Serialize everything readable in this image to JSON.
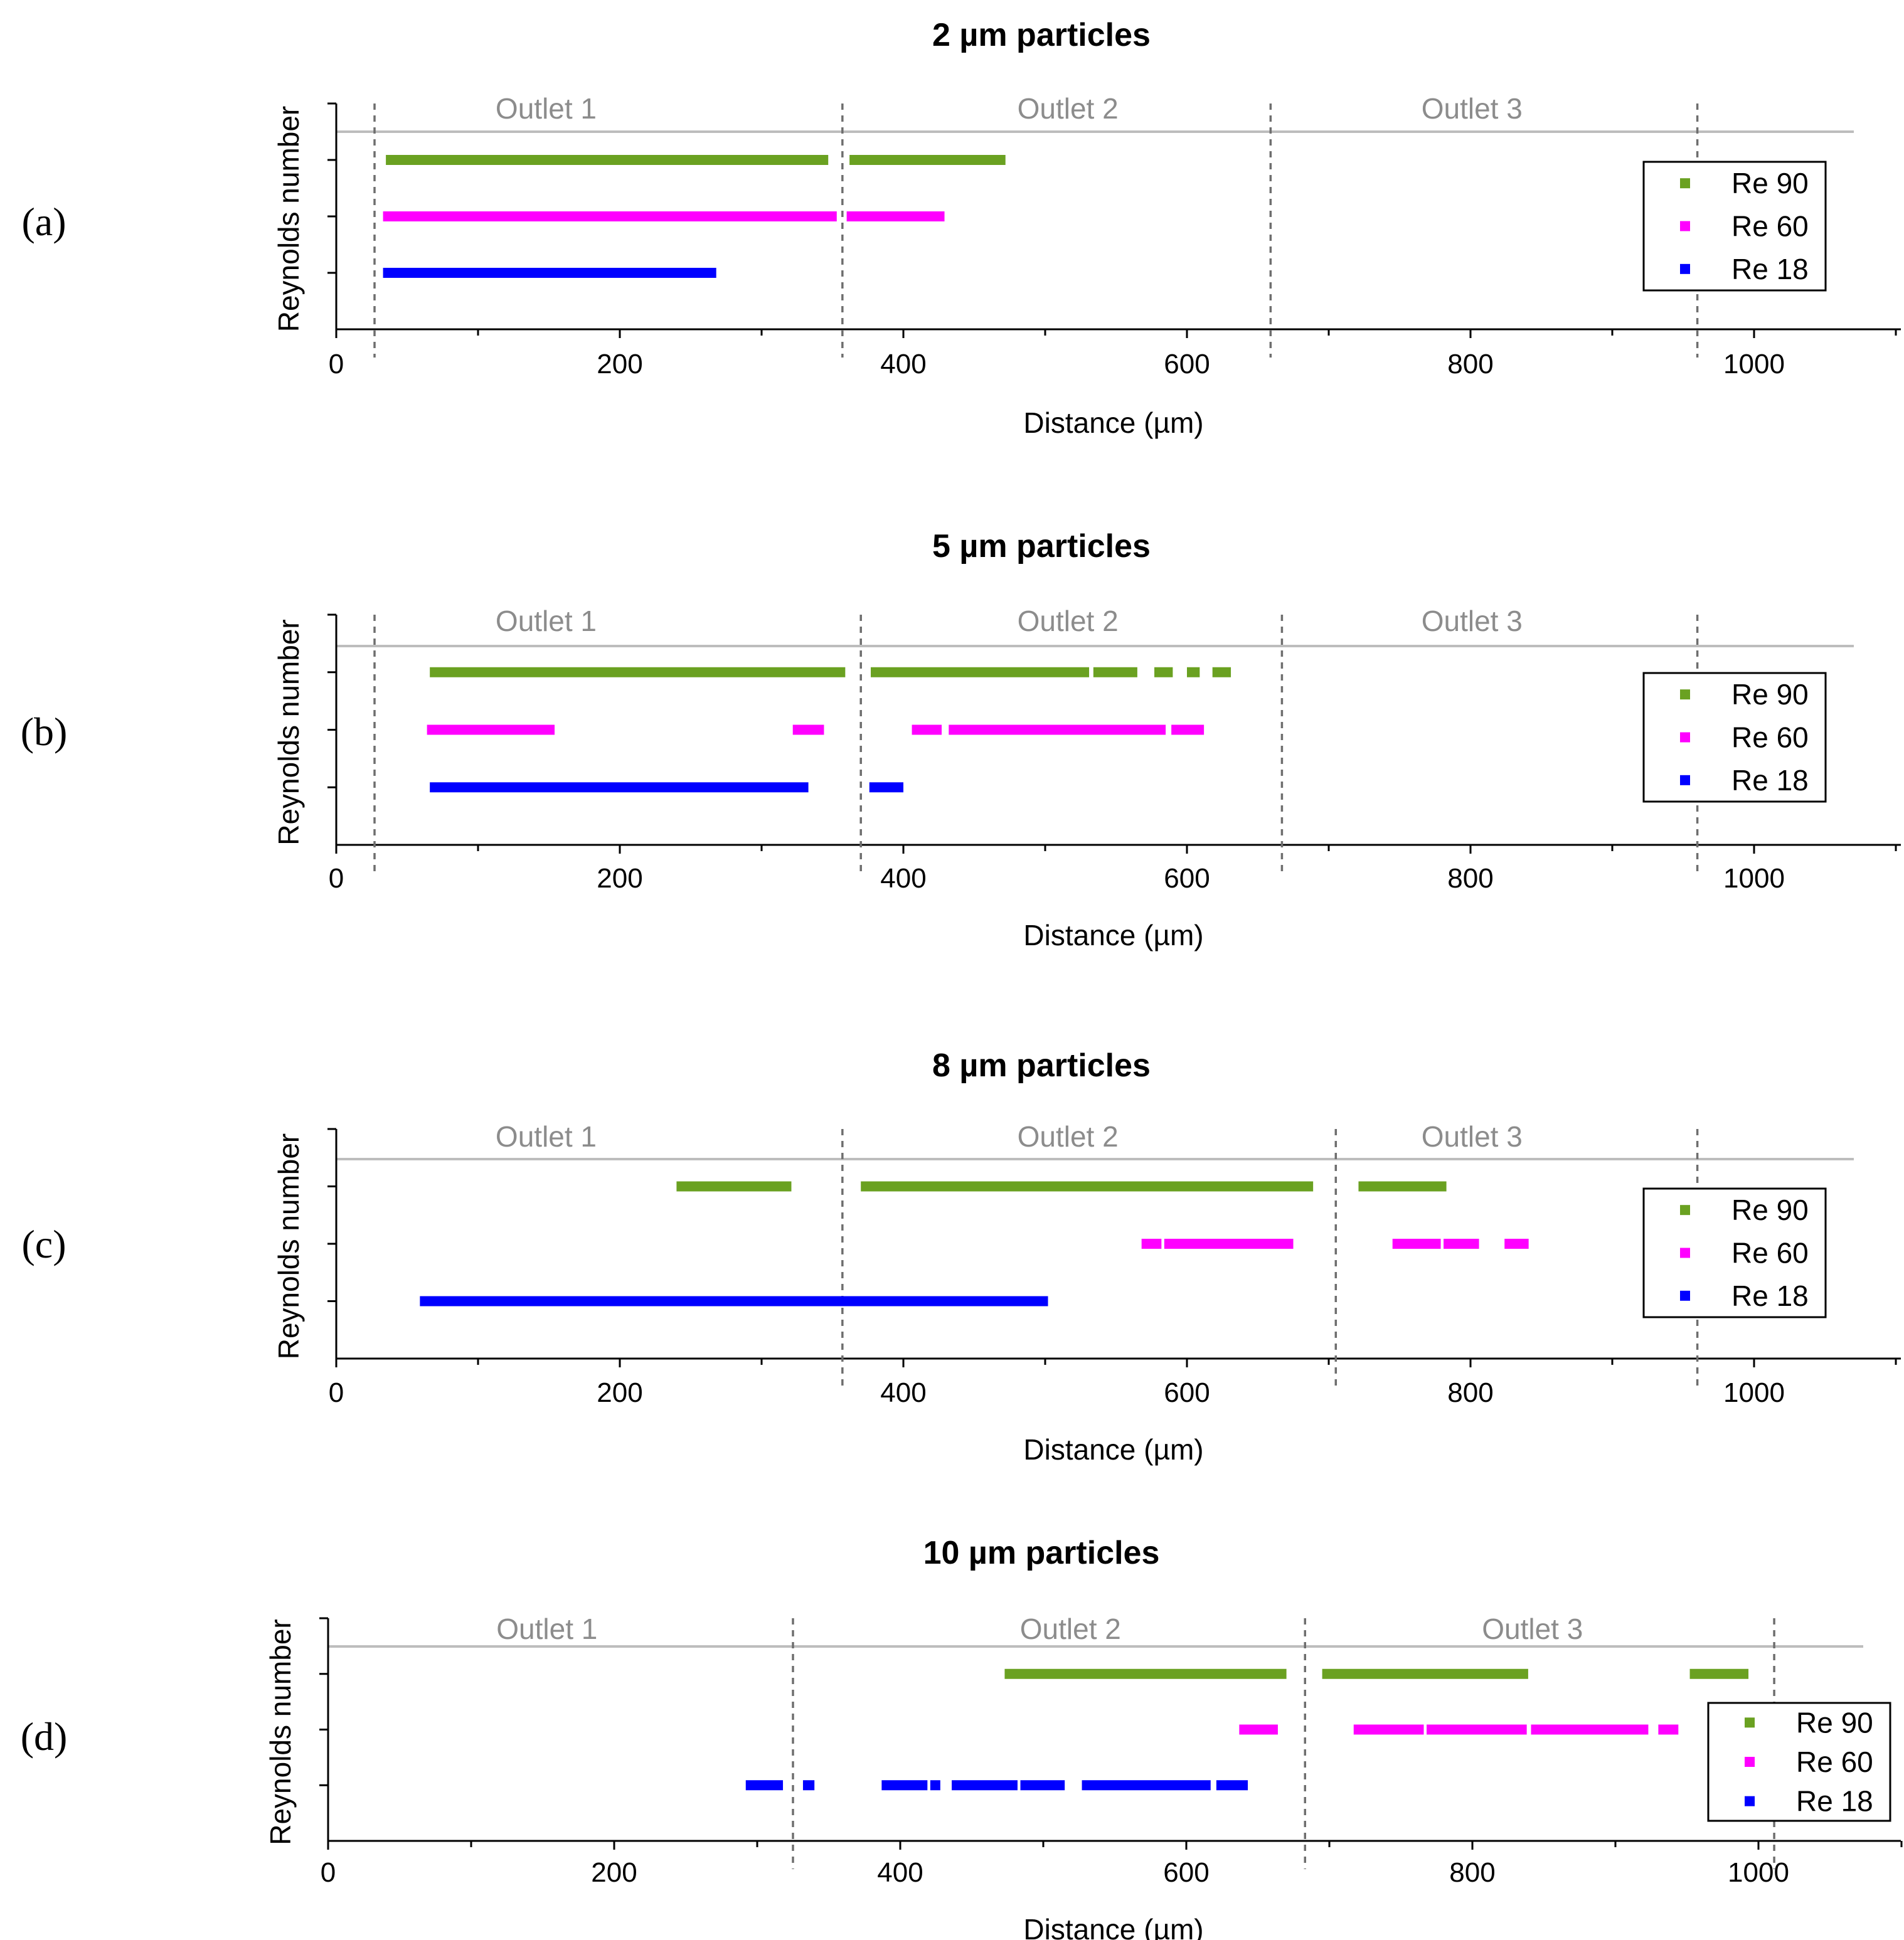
{
  "colors": {
    "Re 90": "#6aa121",
    "Re 60": "#ff00ff",
    "Re 18": "#0000ff",
    "axis": "#000000",
    "divider": "#6e6e6e",
    "top_line": "#bdbdbd",
    "outlet_text": "#8c8c8c"
  },
  "chart_data": [
    {
      "type": "bar",
      "panel_label": "(a)",
      "title": "2 µm particles",
      "xlabel": "Distance (µm)",
      "ylabel": "Reynolds number",
      "xlim": [
        0,
        1100
      ],
      "x_ticks": [
        0,
        200,
        400,
        600,
        800,
        1000
      ],
      "x_tick_labels": [
        "0",
        "200",
        "400",
        "600",
        "800",
        "1000"
      ],
      "grid": false,
      "legend": {
        "position": "right",
        "entries": [
          "Re 90",
          "Re 60",
          "Re 18"
        ]
      },
      "outlet_labels": [
        {
          "text": "Outlet 1",
          "x": 148
        },
        {
          "text": "Outlet 2",
          "x": 516
        },
        {
          "text": "Outlet 3",
          "x": 801
        }
      ],
      "outlet_boundaries": [
        27,
        357,
        659,
        960
      ],
      "series": [
        {
          "name": "Re 90",
          "segments": [
            [
              35,
              347
            ],
            [
              362,
              472
            ]
          ]
        },
        {
          "name": "Re 60",
          "segments": [
            [
              33,
              353
            ],
            [
              360,
              429
            ]
          ]
        },
        {
          "name": "Re 18",
          "segments": [
            [
              33,
              268
            ]
          ]
        }
      ]
    },
    {
      "type": "bar",
      "panel_label": "(b)",
      "title": "5 µm particles",
      "xlabel": "Distance (µm)",
      "ylabel": "Reynolds number",
      "xlim": [
        0,
        1100
      ],
      "x_ticks": [
        0,
        200,
        400,
        600,
        800,
        1000
      ],
      "x_tick_labels": [
        "0",
        "200",
        "400",
        "600",
        "800",
        "1000"
      ],
      "grid": false,
      "legend": {
        "position": "right",
        "entries": [
          "Re 90",
          "Re 60",
          "Re 18"
        ]
      },
      "outlet_labels": [
        {
          "text": "Outlet 1",
          "x": 148
        },
        {
          "text": "Outlet 2",
          "x": 516
        },
        {
          "text": "Outlet 3",
          "x": 801
        }
      ],
      "outlet_boundaries": [
        27,
        370,
        667,
        960
      ],
      "series": [
        {
          "name": "Re 90",
          "segments": [
            [
              66,
              359
            ],
            [
              377,
              531
            ],
            [
              534,
              565
            ],
            [
              577,
              590
            ],
            [
              600,
              609
            ],
            [
              618,
              631
            ]
          ]
        },
        {
          "name": "Re 60",
          "segments": [
            [
              64,
              154
            ],
            [
              322,
              344
            ],
            [
              406,
              427
            ],
            [
              432,
              585
            ],
            [
              589,
              612
            ]
          ]
        },
        {
          "name": "Re 18",
          "segments": [
            [
              66,
              333
            ],
            [
              376,
              400
            ]
          ]
        }
      ]
    },
    {
      "type": "bar",
      "panel_label": "(c)",
      "title": "8 µm particles",
      "xlabel": "Distance (µm)",
      "ylabel": "Reynolds number",
      "xlim": [
        0,
        1100
      ],
      "x_ticks": [
        0,
        200,
        400,
        600,
        800,
        1000
      ],
      "x_tick_labels": [
        "0",
        "200",
        "400",
        "600",
        "800",
        "1000"
      ],
      "grid": false,
      "legend": {
        "position": "right",
        "entries": [
          "Re 90",
          "Re 60",
          "Re 18"
        ]
      },
      "outlet_labels": [
        {
          "text": "Outlet 1",
          "x": 148
        },
        {
          "text": "Outlet 2",
          "x": 516
        },
        {
          "text": "Outlet 3",
          "x": 801
        }
      ],
      "outlet_boundaries": [
        357,
        705,
        960
      ],
      "series": [
        {
          "name": "Re 90",
          "segments": [
            [
              240,
              321
            ],
            [
              370,
              689
            ],
            [
              721,
              783
            ]
          ]
        },
        {
          "name": "Re 60",
          "segments": [
            [
              568,
              582
            ],
            [
              584,
              675
            ],
            [
              745,
              779
            ],
            [
              781,
              806
            ],
            [
              824,
              841
            ]
          ]
        },
        {
          "name": "Re 18",
          "segments": [
            [
              59,
              502
            ]
          ]
        }
      ]
    },
    {
      "type": "bar",
      "panel_label": "(d)",
      "title": "10 µm particles",
      "xlabel": "Distance (µm)",
      "ylabel": "Reynolds number",
      "xlim": [
        0,
        1100
      ],
      "x_ticks": [
        0,
        200,
        400,
        600,
        800,
        1000
      ],
      "x_tick_labels": [
        "0",
        "200",
        "400",
        "600",
        "800",
        "1000"
      ],
      "grid": false,
      "legend": {
        "position": "right",
        "entries": [
          "Re 90",
          "Re 60",
          "Re 18"
        ]
      },
      "outlet_labels": [
        {
          "text": "Outlet 1",
          "x": 153
        },
        {
          "text": "Outlet 2",
          "x": 519
        },
        {
          "text": "Outlet 3",
          "x": 842
        }
      ],
      "outlet_boundaries": [
        325,
        683,
        1011
      ],
      "series": [
        {
          "name": "Re 90",
          "segments": [
            [
              473,
              670
            ],
            [
              695,
              839
            ],
            [
              952,
              993
            ]
          ]
        },
        {
          "name": "Re 60",
          "segments": [
            [
              637,
              664
            ],
            [
              717,
              766
            ],
            [
              768,
              838
            ],
            [
              841,
              923
            ],
            [
              930,
              944
            ]
          ]
        },
        {
          "name": "Re 18",
          "segments": [
            [
              292,
              318
            ],
            [
              332,
              340
            ],
            [
              387,
              419
            ],
            [
              421,
              428
            ],
            [
              436,
              482
            ],
            [
              484,
              515
            ],
            [
              527,
              617
            ],
            [
              621,
              643
            ]
          ]
        }
      ]
    }
  ]
}
